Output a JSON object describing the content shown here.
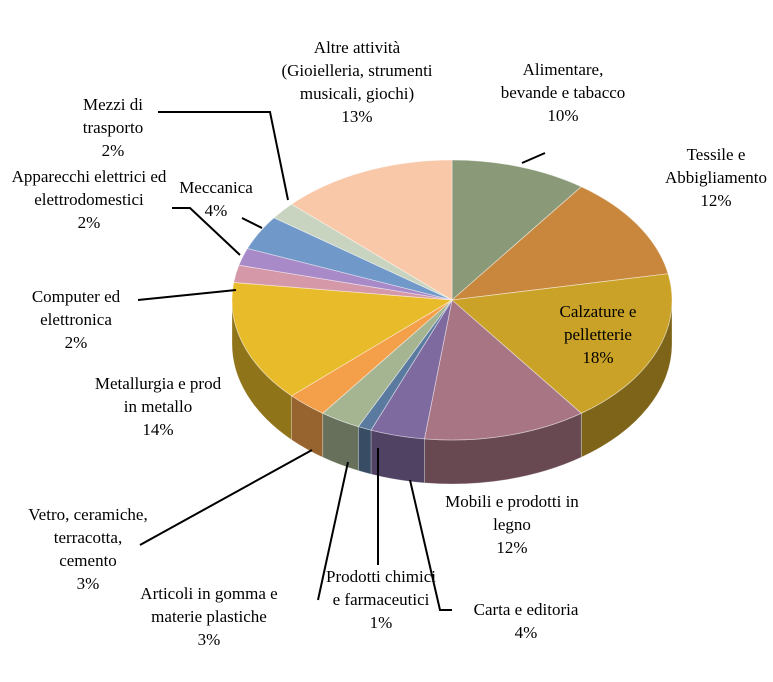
{
  "chart_data": {
    "type": "pie3d",
    "categories": [
      "Alimentare, bevande e tabacco",
      "Tessile e Abbigliamento",
      "Calzature e pelletterie",
      "Mobili e prodotti in legno",
      "Carta e editoria",
      "Prodotti chimici e farmaceutici",
      "Articoli in gomma e materie plastiche",
      "Vetro, ceramiche, terracotta, cemento",
      "Metallurgia e prod in metallo",
      "Computer ed elettronica",
      "Apparecchi elettrici ed elettrodomestici",
      "Meccanica",
      "Mezzi di trasporto",
      "Altre attività (Gioielleria, strumenti musicali, giochi)"
    ],
    "values": [
      10,
      12,
      18,
      12,
      4,
      1,
      3,
      3,
      14,
      2,
      2,
      4,
      2,
      13
    ],
    "value_labels": [
      "10%",
      "12%",
      "18%",
      "12%",
      "4%",
      "1%",
      "3%",
      "3%",
      "14%",
      "2%",
      "2%",
      "4%",
      "2%",
      "13%"
    ],
    "colors": [
      "#8a9a78",
      "#c8873c",
      "#c9a227",
      "#a87584",
      "#7f6aa0",
      "#5b7aa0",
      "#a5b592",
      "#f4a04a",
      "#e8bb2a",
      "#d598a8",
      "#a88ac8",
      "#7098c8",
      "#c8d4c0",
      "#f8c8a8"
    ]
  }
}
